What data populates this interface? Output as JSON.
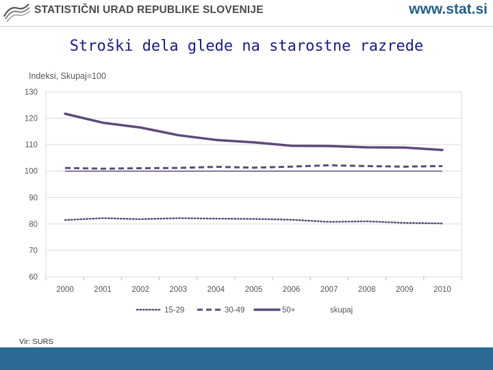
{
  "header": {
    "org_name": "STATISTIČNI URAD REPUBLIKE SLOVENIJE",
    "website": "www.stat.si",
    "logo_icon": "surs-logo-icon"
  },
  "page": {
    "source_note": "Vir: SURS"
  },
  "colors": {
    "series": "#5b4a7a",
    "footer": "#2b6a93",
    "title": "#1a1a8c"
  },
  "chart_data": {
    "type": "line",
    "title": "Stroški dela glede na starostne razrede",
    "ylabel": "Indeksi, Skupaj=100",
    "xlabel": "",
    "ylim": [
      60,
      130
    ],
    "yticks": [
      60,
      70,
      80,
      90,
      100,
      110,
      120,
      130
    ],
    "x": [
      "2000",
      "2001",
      "2002",
      "2003",
      "2004",
      "2005",
      "2006",
      "2007",
      "2008",
      "2009",
      "2010"
    ],
    "series": [
      {
        "name": "15-29",
        "style": "dotted",
        "values": [
          81.5,
          82.2,
          81.8,
          82.2,
          82.0,
          81.9,
          81.6,
          80.8,
          81.0,
          80.4,
          80.2
        ]
      },
      {
        "name": "30-49",
        "style": "dashed",
        "values": [
          101.2,
          100.9,
          101.1,
          101.2,
          101.6,
          101.3,
          101.7,
          102.2,
          101.9,
          101.7,
          101.9
        ]
      },
      {
        "name": "50+",
        "style": "solid-bold",
        "values": [
          121.7,
          118.3,
          116.5,
          113.6,
          111.8,
          110.9,
          109.6,
          109.5,
          109.0,
          108.9,
          108.0
        ]
      },
      {
        "name": "skupaj",
        "style": "solid-thin",
        "values": [
          100,
          100,
          100,
          100,
          100,
          100,
          100,
          100,
          100,
          100,
          100
        ]
      }
    ],
    "legend_labels": [
      "15-29",
      "30-49",
      "50+",
      "skupaj"
    ],
    "legend_position": "bottom",
    "grid": true
  }
}
